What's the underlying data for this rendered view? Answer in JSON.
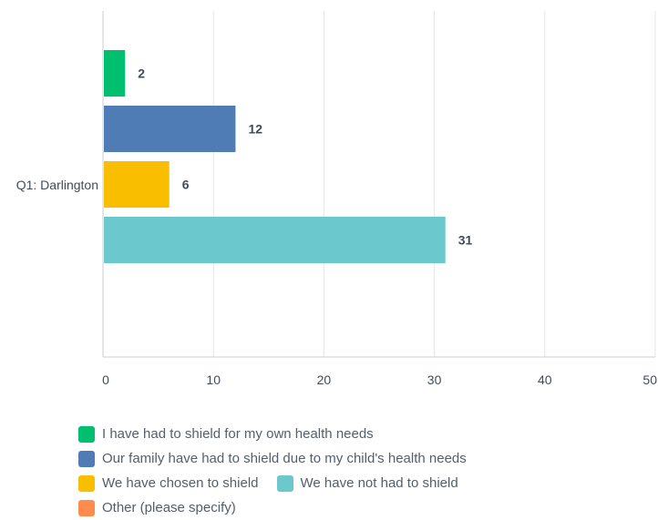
{
  "chart_data": {
    "type": "bar",
    "orientation": "horizontal",
    "categories": [
      "Q1: Darlington"
    ],
    "series": [
      {
        "name": "I have had to shield for my own health needs",
        "values": [
          2
        ],
        "color": "#00bf6f"
      },
      {
        "name": "Our family have had to shield due to my child's health needs",
        "values": [
          12
        ],
        "color": "#507cb6"
      },
      {
        "name": "We have chosen to shield",
        "values": [
          6
        ],
        "color": "#f9be00"
      },
      {
        "name": "We have not had to shield",
        "values": [
          31
        ],
        "color": "#6bc8cd"
      },
      {
        "name": "Other (please specify)",
        "values": [
          0
        ],
        "color": "#ff8b4f"
      }
    ],
    "xlim": [
      0,
      50
    ],
    "xticks": [
      "0",
      "10",
      "20",
      "30",
      "40",
      "50"
    ],
    "grid": true,
    "legend_position": "bottom",
    "title": "",
    "xlabel": "",
    "ylabel": ""
  }
}
